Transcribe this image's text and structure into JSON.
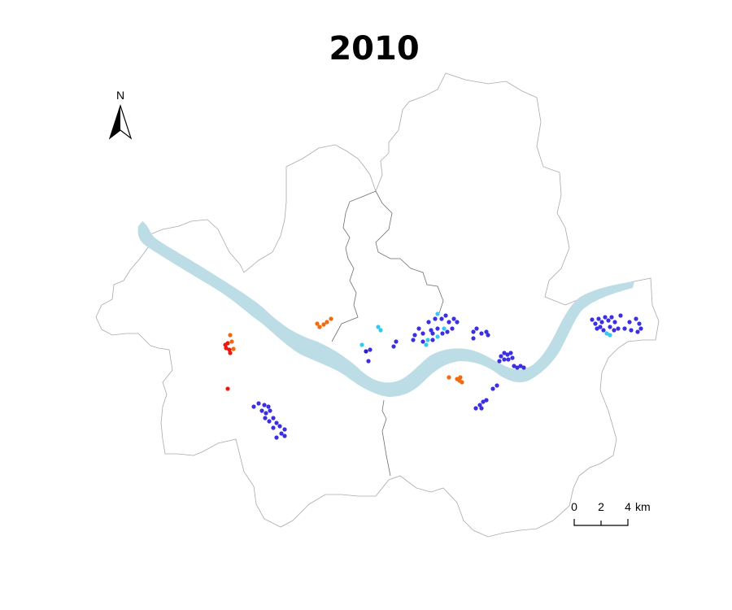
{
  "title": "2010",
  "north_arrow": {
    "label": "N"
  },
  "scale_bar": {
    "ticks": [
      "0",
      "2",
      "4"
    ],
    "unit": "km"
  },
  "colors": {
    "river": "#bcdde6",
    "boundary": "#a9a9a9",
    "cluster_blue": "#3b2fe0",
    "cluster_dark_blue": "#2a1fb8",
    "cluster_light_blue": "#35c8f0",
    "cluster_orange": "#f26a10",
    "cluster_red": "#e81a10"
  },
  "legend": null
}
